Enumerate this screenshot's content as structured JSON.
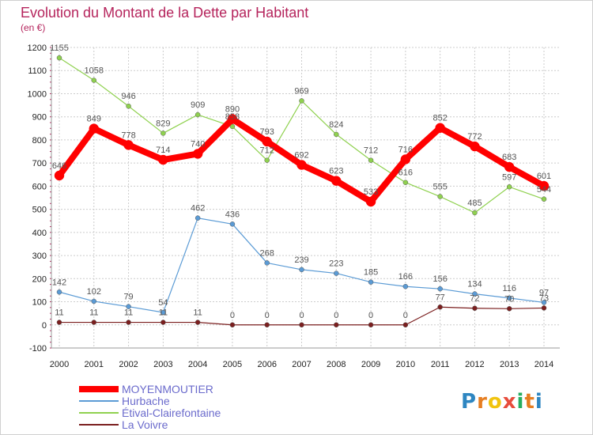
{
  "title": "Evolution du Montant de la Dette par Habitant",
  "subtitle": "(en €)",
  "logo_text": "Proxiti",
  "colors": {
    "title": "#b5245c",
    "legend_text": "#6b6bcc",
    "grid": "#cccccc",
    "axis_text": "#222222",
    "label_text": "#555555"
  },
  "chart_data": {
    "type": "line",
    "x": [
      "2000",
      "2001",
      "2002",
      "2003",
      "2004",
      "2005",
      "2006",
      "2007",
      "2008",
      "2009",
      "2010",
      "2011",
      "2012",
      "2013",
      "2014"
    ],
    "ylim": [
      -100,
      1200
    ],
    "yticks": [
      -100,
      0,
      100,
      200,
      300,
      400,
      500,
      600,
      700,
      800,
      900,
      1000,
      1100,
      1200
    ],
    "grid": true,
    "legend_position": "bottom-left",
    "series": [
      {
        "name": "MOYENMOUTIER",
        "color": "#ff0000",
        "values": [
          646,
          849,
          778,
          714,
          740,
          890,
          793,
          692,
          623,
          533,
          716,
          852,
          772,
          683,
          601
        ]
      },
      {
        "name": "Hurbache",
        "color": "#5b9bd5",
        "values": [
          142,
          102,
          79,
          54,
          462,
          436,
          268,
          239,
          223,
          185,
          166,
          156,
          134,
          116,
          97
        ]
      },
      {
        "name": "Étival-Clairefontaine",
        "color": "#8fd14f",
        "values": [
          1155,
          1058,
          946,
          829,
          909,
          858,
          712,
          969,
          824,
          712,
          616,
          555,
          485,
          597,
          544
        ]
      },
      {
        "name": "La Voivre",
        "color": "#7b1f1f",
        "values": [
          11,
          11,
          11,
          11,
          11,
          0,
          0,
          0,
          0,
          0,
          0,
          77,
          72,
          70,
          73
        ]
      }
    ]
  }
}
